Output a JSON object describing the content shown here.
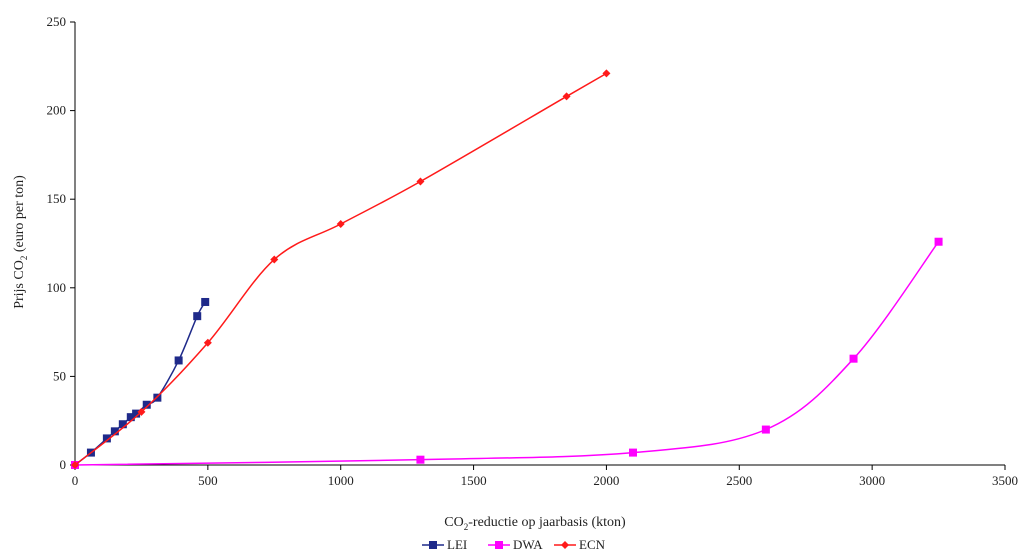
{
  "chart_data": {
    "type": "line",
    "title": "",
    "xlabel_main": "CO",
    "xlabel_sub": "2",
    "xlabel_rest": "-reductie op jaarbasis (kton)",
    "ylabel_main": "Prijs CO",
    "ylabel_sub": "2",
    "ylabel_rest": " (euro per ton)",
    "xlim": [
      0,
      3500
    ],
    "ylim": [
      0,
      250
    ],
    "xticks": [
      0,
      500,
      1000,
      1500,
      2000,
      2500,
      3000,
      3500
    ],
    "yticks": [
      0,
      50,
      100,
      150,
      200,
      250
    ],
    "grid": false,
    "legend_position": "bottom-center",
    "series": [
      {
        "name": "LEI",
        "color": "#1f2a8a",
        "marker": "square",
        "x": [
          0,
          60,
          120,
          150,
          180,
          210,
          230,
          270,
          310,
          390,
          460,
          490
        ],
        "y": [
          0,
          7,
          15,
          19,
          23,
          27,
          29,
          34,
          38,
          59,
          84,
          92
        ]
      },
      {
        "name": "DWA",
        "color": "#ff00ff",
        "marker": "square",
        "x": [
          0,
          1300,
          2100,
          2600,
          2930,
          3250
        ],
        "y": [
          0,
          3,
          7,
          20,
          60,
          126
        ]
      },
      {
        "name": "ECN",
        "color": "#ff1a1a",
        "marker": "diamond",
        "x": [
          0,
          250,
          500,
          750,
          1000,
          1300,
          1850,
          2000
        ],
        "y": [
          0,
          30,
          69,
          116,
          136,
          160,
          208,
          221
        ]
      }
    ]
  }
}
